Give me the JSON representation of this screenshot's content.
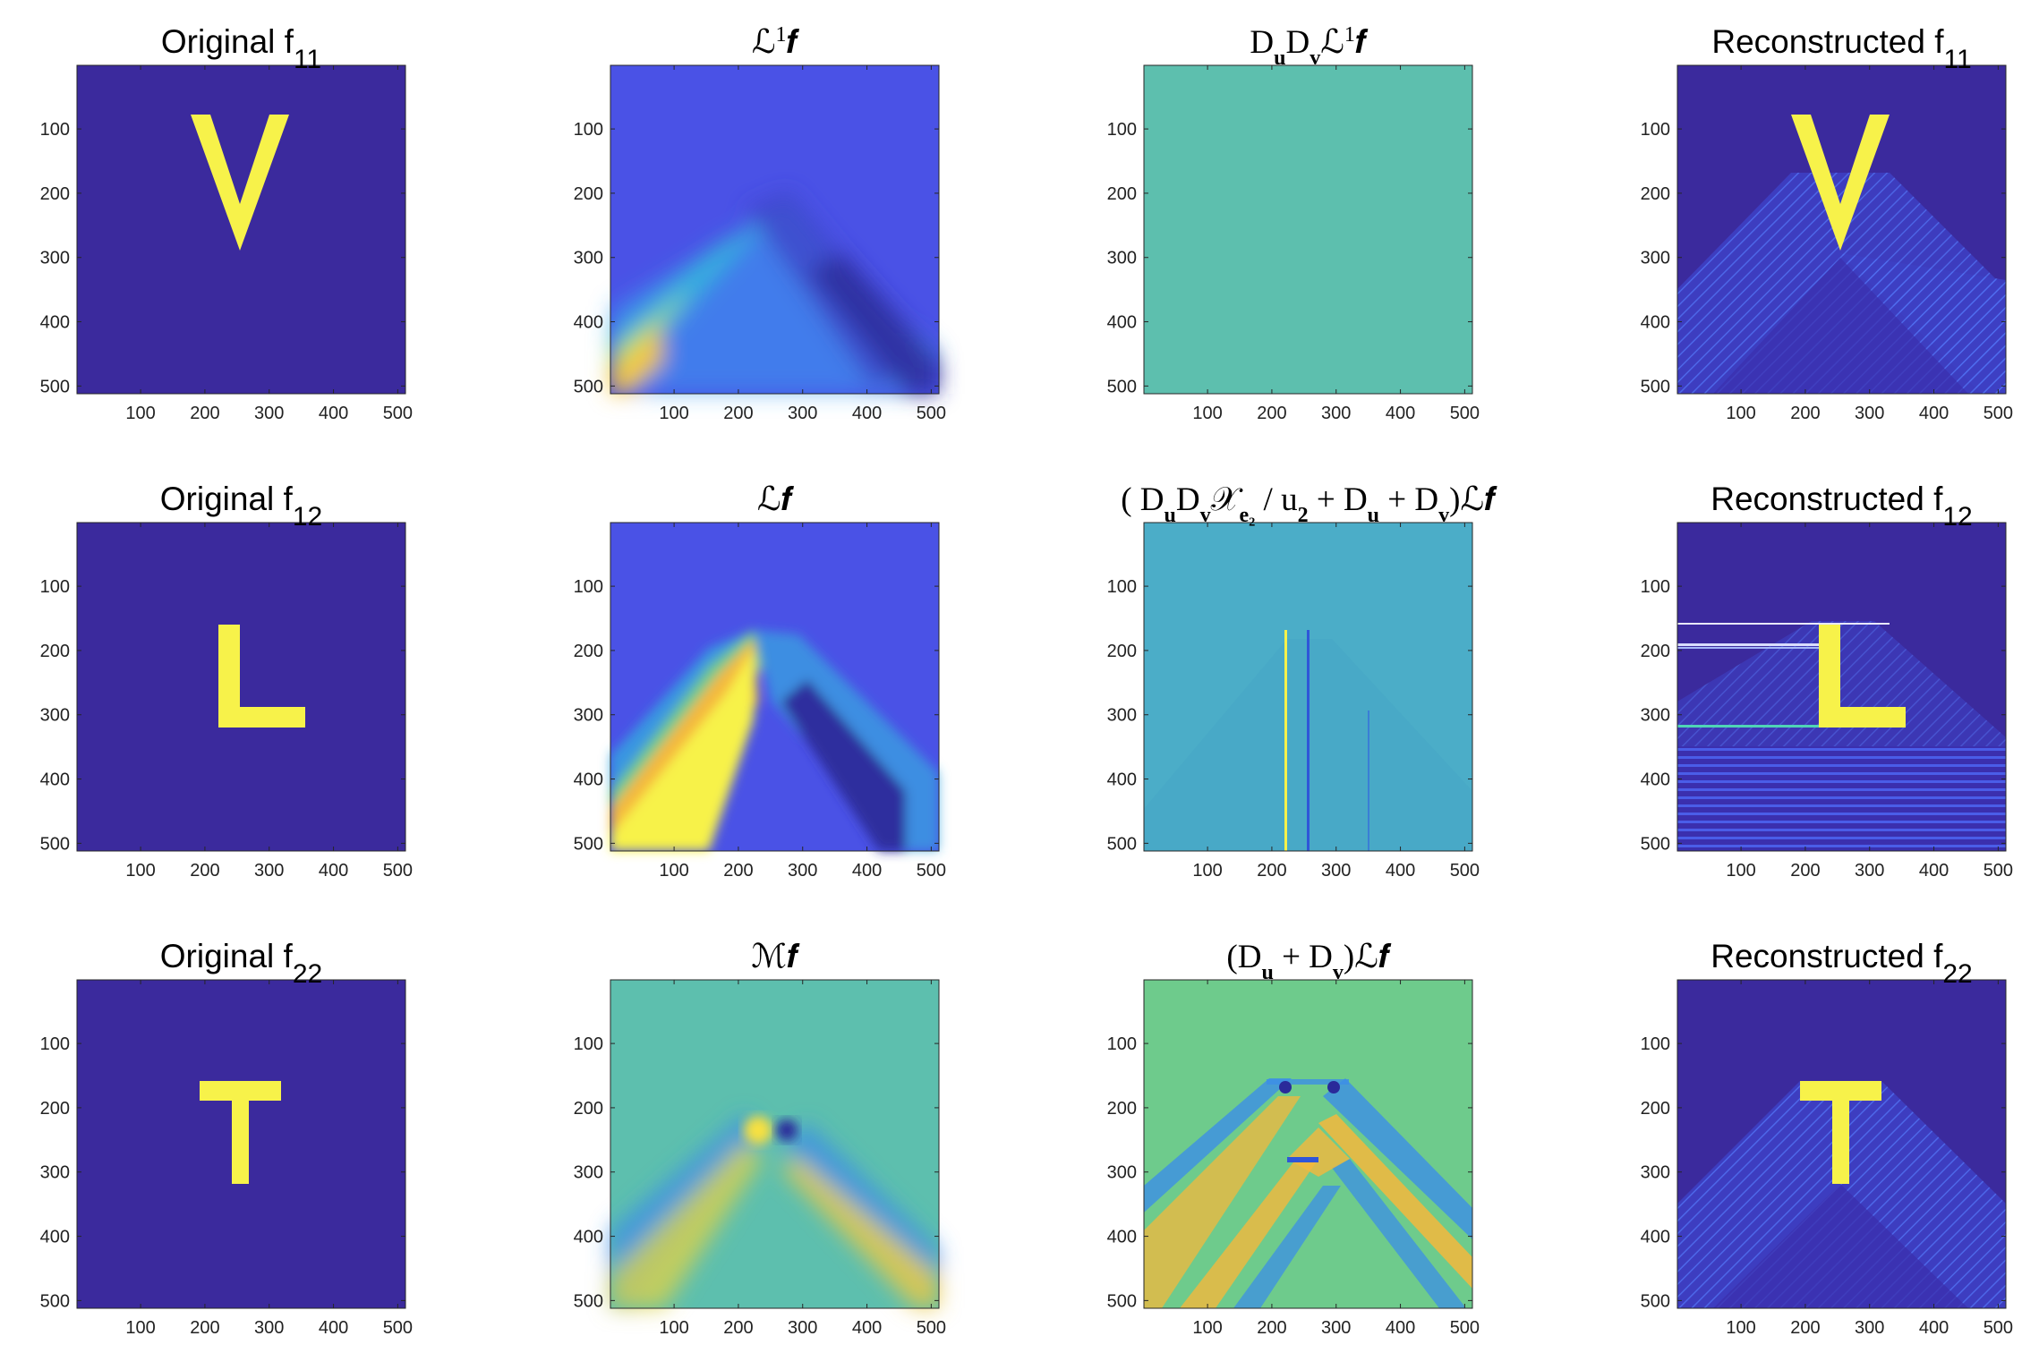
{
  "figure": {
    "colors": {
      "dark": "#3b2a9d",
      "mid_blue": "#4a52e6",
      "blue": "#2f6df0",
      "teal": "#5dbfae",
      "cyan": "#4badc8",
      "green": "#6ecb8c",
      "yellow": "#f7f24a",
      "orange": "#f4b83c",
      "light_blue": "#36a7e0"
    }
  },
  "chart_data": [
    {
      "id": "r1c1",
      "type": "heatmap",
      "title": "Original f",
      "title_sub": "11",
      "xticks": [
        "100",
        "200",
        "300",
        "400",
        "500"
      ],
      "yticks": [
        "100",
        "200",
        "300",
        "400",
        "500"
      ],
      "xlim": [
        1,
        512
      ],
      "ylim": [
        1,
        512
      ],
      "content": "letter V"
    },
    {
      "id": "r1c2",
      "type": "heatmap",
      "title_parts": [
        {
          "t": "ℒ"
        },
        {
          "t": "1",
          "sup": true
        },
        {
          "t": "𝒇"
        }
      ],
      "xticks": [
        "100",
        "200",
        "300",
        "400",
        "500"
      ],
      "yticks": [
        "100",
        "200",
        "300",
        "400",
        "500"
      ],
      "xlim": [
        1,
        512
      ],
      "ylim": [
        1,
        512
      ]
    },
    {
      "id": "r1c3",
      "type": "heatmap",
      "title_parts": [
        {
          "t": "D"
        },
        {
          "t": "u",
          "sub": true
        },
        {
          "t": "D"
        },
        {
          "t": "v",
          "sub": true
        },
        {
          "t": "ℒ"
        },
        {
          "t": "1",
          "sup": true
        },
        {
          "t": "𝒇"
        }
      ],
      "xticks": [
        "100",
        "200",
        "300",
        "400",
        "500"
      ],
      "yticks": [
        "100",
        "200",
        "300",
        "400",
        "500"
      ],
      "xlim": [
        1,
        512
      ],
      "ylim": [
        1,
        512
      ]
    },
    {
      "id": "r1c4",
      "type": "heatmap",
      "title": "Reconstructed f",
      "title_sub": "11",
      "xticks": [
        "100",
        "200",
        "300",
        "400",
        "500"
      ],
      "yticks": [
        "100",
        "200",
        "300",
        "400",
        "500"
      ],
      "xlim": [
        1,
        512
      ],
      "ylim": [
        1,
        512
      ]
    },
    {
      "id": "r2c1",
      "type": "heatmap",
      "title": "Original f",
      "title_sub": "12",
      "xticks": [
        "100",
        "200",
        "300",
        "400",
        "500"
      ],
      "yticks": [
        "100",
        "200",
        "300",
        "400",
        "500"
      ],
      "xlim": [
        1,
        512
      ],
      "ylim": [
        1,
        512
      ],
      "content": "letter L"
    },
    {
      "id": "r2c2",
      "type": "heatmap",
      "title_parts": [
        {
          "t": "ℒ"
        },
        {
          "t": "𝒇"
        }
      ],
      "xticks": [
        "100",
        "200",
        "300",
        "400",
        "500"
      ],
      "yticks": [
        "100",
        "200",
        "300",
        "400",
        "500"
      ],
      "xlim": [
        1,
        512
      ],
      "ylim": [
        1,
        512
      ]
    },
    {
      "id": "r2c3",
      "type": "heatmap",
      "title_parts": [
        {
          "t": "( "
        },
        {
          "t": "D"
        },
        {
          "t": "u",
          "sub": true
        },
        {
          "t": "D"
        },
        {
          "t": "v",
          "sub": true
        },
        {
          "t": "𝒳"
        },
        {
          "t": "e₂",
          "sub": true
        },
        {
          "t": " / u"
        },
        {
          "t": "2",
          "sub": true
        },
        {
          "t": " + D"
        },
        {
          "t": "u",
          "sub": true
        },
        {
          "t": " + D"
        },
        {
          "t": "v",
          "sub": true
        },
        {
          "t": ")ℒ𝒇"
        }
      ],
      "xticks": [
        "100",
        "200",
        "300",
        "400",
        "500"
      ],
      "yticks": [
        "100",
        "200",
        "300",
        "400",
        "500"
      ],
      "xlim": [
        1,
        512
      ],
      "ylim": [
        1,
        512
      ]
    },
    {
      "id": "r2c4",
      "type": "heatmap",
      "title": "Reconstructed f",
      "title_sub": "12",
      "xticks": [
        "100",
        "200",
        "300",
        "400",
        "500"
      ],
      "yticks": [
        "100",
        "200",
        "300",
        "400",
        "500"
      ],
      "xlim": [
        1,
        512
      ],
      "ylim": [
        1,
        512
      ]
    },
    {
      "id": "r3c1",
      "type": "heatmap",
      "title": "Original f",
      "title_sub": "22",
      "xticks": [
        "100",
        "200",
        "300",
        "400",
        "500"
      ],
      "yticks": [
        "100",
        "200",
        "300",
        "400",
        "500"
      ],
      "xlim": [
        1,
        512
      ],
      "ylim": [
        1,
        512
      ],
      "content": "letter T"
    },
    {
      "id": "r3c2",
      "type": "heatmap",
      "title_parts": [
        {
          "t": "ℳ"
        },
        {
          "t": "𝒇"
        }
      ],
      "xticks": [
        "100",
        "200",
        "300",
        "400",
        "500"
      ],
      "yticks": [
        "100",
        "200",
        "300",
        "400",
        "500"
      ],
      "xlim": [
        1,
        512
      ],
      "ylim": [
        1,
        512
      ]
    },
    {
      "id": "r3c3",
      "type": "heatmap",
      "title_parts": [
        {
          "t": "(D"
        },
        {
          "t": "u",
          "sub": true
        },
        {
          "t": " + D"
        },
        {
          "t": "v",
          "sub": true
        },
        {
          "t": ")ℒ𝒇"
        }
      ],
      "xticks": [
        "100",
        "200",
        "300",
        "400",
        "500"
      ],
      "yticks": [
        "100",
        "200",
        "300",
        "400",
        "500"
      ],
      "xlim": [
        1,
        512
      ],
      "ylim": [
        1,
        512
      ]
    },
    {
      "id": "r3c4",
      "type": "heatmap",
      "title": "Reconstructed f",
      "title_sub": "22",
      "xticks": [
        "100",
        "200",
        "300",
        "400",
        "500"
      ],
      "yticks": [
        "100",
        "200",
        "300",
        "400",
        "500"
      ],
      "xlim": [
        1,
        512
      ],
      "ylim": [
        1,
        512
      ]
    }
  ]
}
